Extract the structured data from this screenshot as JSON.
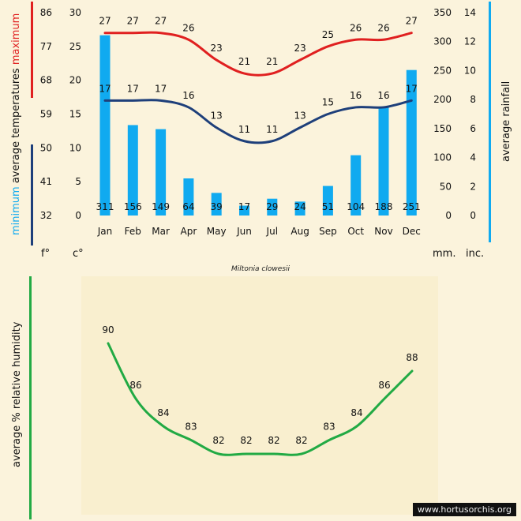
{
  "chart_data": [
    {
      "type": "bar+line",
      "categories": [
        "Jan",
        "Feb",
        "Mar",
        "Apr",
        "May",
        "Jun",
        "Jul",
        "Aug",
        "Sep",
        "Oct",
        "Nov",
        "Dec"
      ],
      "series": [
        {
          "name": "maximum",
          "kind": "line",
          "color": "#e02020",
          "values": [
            27,
            27,
            27,
            26,
            23,
            21,
            21,
            23,
            25,
            26,
            26,
            27
          ]
        },
        {
          "name": "minimum",
          "kind": "line",
          "color": "#1e3f7a",
          "values": [
            17,
            17,
            17,
            16,
            13,
            11,
            11,
            13,
            15,
            16,
            16,
            17
          ]
        },
        {
          "name": "average rainfall",
          "kind": "bar",
          "color": "#10aaf0",
          "values": [
            311,
            156,
            149,
            64,
            39,
            17,
            29,
            24,
            51,
            104,
            188,
            251
          ]
        }
      ],
      "axes": {
        "f_ticks": [
          86,
          77,
          68,
          59,
          50,
          41,
          32
        ],
        "c_ticks": [
          30,
          25,
          20,
          15,
          10,
          5,
          0
        ],
        "mm_ticks": [
          350,
          300,
          250,
          200,
          150,
          100,
          50,
          0
        ],
        "inc_ticks": [
          14,
          12,
          10,
          8,
          6,
          4,
          2,
          0
        ],
        "c_range": [
          0,
          30
        ],
        "mm_range": [
          0,
          350
        ]
      },
      "labels": {
        "left_prefix": "average  temperatures",
        "maximum": "maximum",
        "minimum": "minimum",
        "right": "average rainfall",
        "unit_f": "f°",
        "unit_c": "c°",
        "unit_mm": "mm.",
        "unit_inc": "inc."
      }
    },
    {
      "type": "line",
      "categories": [
        "Jan",
        "Feb",
        "Mar",
        "Apr",
        "May",
        "Jun",
        "Jul",
        "Aug",
        "Sep",
        "Oct",
        "Nov",
        "Dec"
      ],
      "series": [
        {
          "name": "average % relative humidity",
          "color": "#22aa44",
          "values": [
            90,
            86,
            84,
            83,
            82,
            82,
            82,
            82,
            83,
            84,
            86,
            88
          ]
        }
      ],
      "ylabel": "average %  relative humidity"
    }
  ],
  "caption": "Miltonia clowesii",
  "watermark": "www.hortusorchis.org",
  "colors": {
    "max_bar": "#e02020",
    "min_bar": "#1e3f7a",
    "rain_bar": "#10aaf0",
    "humidity_bar": "#22aa44",
    "background": "#fbf3dc"
  }
}
